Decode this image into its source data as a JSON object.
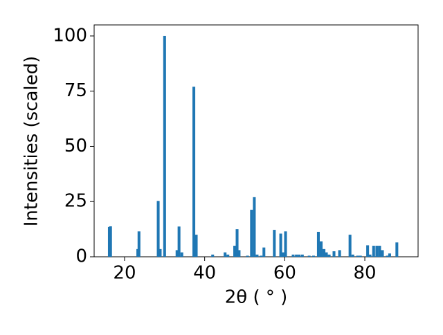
{
  "chart_data": {
    "type": "bar",
    "xlabel": "2θ ( ° )",
    "ylabel": "Intensities (scaled)",
    "color": "#1f77b4",
    "x": [
      16.2,
      16.5,
      23.3,
      23.6,
      28.4,
      28.9,
      30.0,
      33.1,
      33.6,
      34.3,
      37.3,
      37.9,
      42.0,
      45.1,
      45.8,
      47.5,
      48.1,
      48.6,
      50.7,
      51.7,
      52.4,
      53.1,
      54.1,
      54.8,
      57.4,
      59.0,
      59.6,
      60.2,
      62.1,
      62.9,
      63.6,
      64.4,
      66.1,
      67.2,
      68.4,
      69.1,
      69.8,
      70.4,
      71.1,
      72.3,
      73.7,
      76.3,
      77.0,
      78.2,
      78.9,
      80.7,
      81.3,
      82.2,
      83.0,
      83.7,
      84.4,
      85.6,
      86.2,
      88.0
    ],
    "values": [
      13.5,
      13.8,
      3.5,
      11.5,
      25.3,
      3.5,
      100,
      3,
      13.7,
      2,
      77,
      10,
      1,
      2,
      1,
      5,
      12.5,
      3,
      0.5,
      21.3,
      27,
      1,
      0.5,
      4.2,
      12.2,
      10.5,
      2,
      11.5,
      1,
      1,
      1,
      1,
      0.5,
      0.5,
      11.3,
      7,
      3.5,
      2,
      1,
      2.5,
      3,
      10,
      1,
      0.5,
      0.5,
      5.2,
      1,
      5,
      5,
      5,
      3,
      0.5,
      1.5,
      6.5
    ],
    "xlim": [
      12.4,
      93.3
    ],
    "ylim": [
      0,
      105
    ],
    "xticks": [
      20,
      40,
      60,
      80
    ],
    "yticks": [
      0,
      25,
      50,
      75,
      100
    ]
  }
}
